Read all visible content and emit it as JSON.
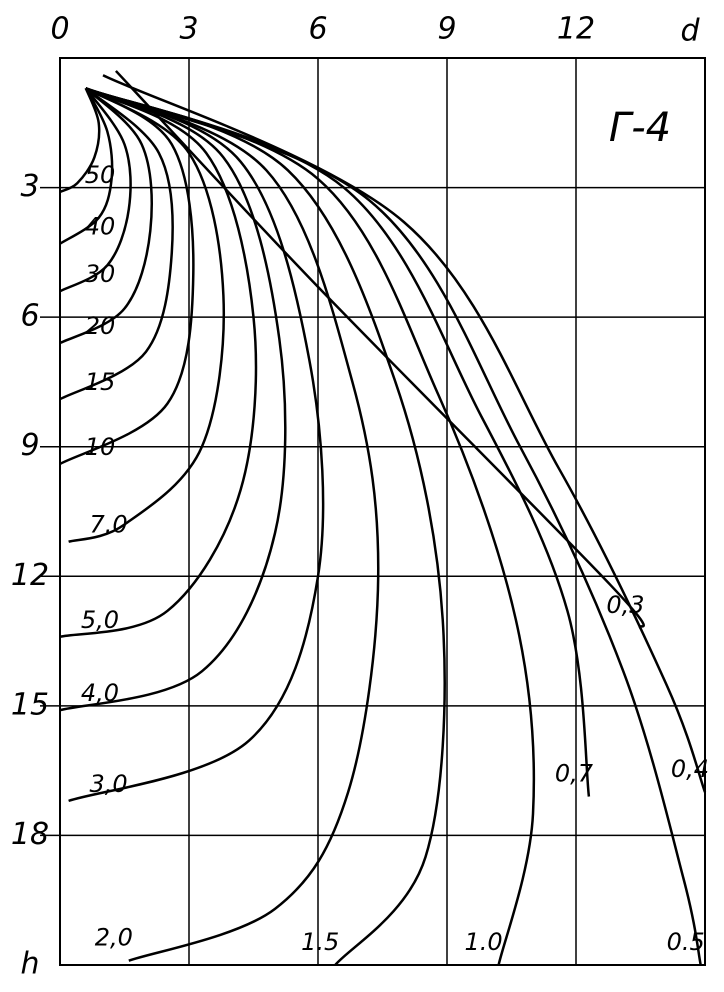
{
  "chart_data": {
    "type": "line",
    "title": "Г-4",
    "x_label": "d",
    "y_label": "h",
    "xlim": [
      0,
      15
    ],
    "ylim": [
      0,
      21
    ],
    "y_inverted": true,
    "xticks": [
      0,
      3,
      6,
      9,
      12
    ],
    "yticks": [
      3,
      6,
      9,
      12,
      15,
      18
    ],
    "grid": true,
    "series": [
      {
        "name": "50",
        "color": "#000000",
        "x": [
          0.6,
          0.9,
          0.8,
          0.4,
          0
        ],
        "values": [
          0.7,
          1.5,
          2.3,
          2.9,
          3.1
        ]
      },
      {
        "name": "40",
        "color": "#000000",
        "x": [
          0.6,
          1.1,
          1.2,
          0.9,
          0
        ],
        "values": [
          0.7,
          1.7,
          2.8,
          3.7,
          4.3
        ]
      },
      {
        "name": "30",
        "color": "#000000",
        "x": [
          0.6,
          1.5,
          1.6,
          1.1,
          0
        ],
        "values": [
          0.7,
          2.0,
          3.5,
          4.8,
          5.4
        ]
      },
      {
        "name": "20",
        "color": "#000000",
        "x": [
          0.6,
          1.9,
          2.1,
          1.5,
          0
        ],
        "values": [
          0.7,
          2.0,
          4.0,
          5.8,
          6.6
        ]
      },
      {
        "name": "15",
        "color": "#000000",
        "x": [
          0.6,
          2.3,
          2.6,
          2.0,
          0
        ],
        "values": [
          0.7,
          2.2,
          4.5,
          6.8,
          7.9
        ]
      },
      {
        "name": "10",
        "color": "#000000",
        "x": [
          0.6,
          2.6,
          3.1,
          2.5,
          0
        ],
        "values": [
          0.7,
          2.0,
          5.0,
          8.0,
          9.4
        ]
      },
      {
        "name": "7.0",
        "color": "#000000",
        "x": [
          0.6,
          3.0,
          3.8,
          3.3,
          1.5,
          0.2
        ],
        "values": [
          0.7,
          2.2,
          5.5,
          9.0,
          10.8,
          11.2
        ]
      },
      {
        "name": "5,0",
        "color": "#000000",
        "x": [
          0.6,
          3.4,
          4.5,
          4.2,
          2.5,
          0
        ],
        "values": [
          0.7,
          2.2,
          6.0,
          10.0,
          12.8,
          13.4
        ]
      },
      {
        "name": "4,0",
        "color": "#000000",
        "x": [
          0.6,
          3.8,
          5.1,
          5.0,
          3.3,
          0
        ],
        "values": [
          0.7,
          2.3,
          6.5,
          11.0,
          14.2,
          15.1
        ]
      },
      {
        "name": "3,0",
        "color": "#000000",
        "x": [
          0.6,
          4.2,
          5.8,
          6.0,
          4.4,
          0.2
        ],
        "values": [
          0.7,
          2.4,
          7.0,
          12.0,
          15.8,
          17.2
        ]
      },
      {
        "name": "2,0",
        "color": "#000000",
        "x": [
          0.6,
          4.8,
          6.8,
          7.4,
          6.7,
          5.0,
          1.6
        ],
        "values": [
          0.7,
          2.6,
          7.5,
          12.0,
          17.0,
          19.7,
          20.9
        ]
      },
      {
        "name": "1.5",
        "color": "#000000",
        "x": [
          0.6,
          5.3,
          7.8,
          8.9,
          8.5,
          6.4
        ],
        "values": [
          0.7,
          2.6,
          7.5,
          13.0,
          18.5,
          21.0
        ]
      },
      {
        "name": "1.0",
        "color": "#000000",
        "x": [
          0.6,
          6.0,
          8.8,
          10.6,
          11.0,
          10.2
        ],
        "values": [
          0.7,
          2.8,
          7.8,
          13.0,
          17.5,
          21.0
        ]
      },
      {
        "name": "0,7",
        "color": "#000000",
        "x": [
          0.6,
          6.6,
          9.8,
          11.8,
          12.3
        ],
        "values": [
          0.7,
          3.0,
          8.3,
          12.8,
          17.1
        ]
      },
      {
        "name": "0.5",
        "color": "#000000",
        "x": [
          0.6,
          7.2,
          10.7,
          13.1,
          14.5,
          14.9
        ],
        "values": [
          0.7,
          3.3,
          9.0,
          14.2,
          19.0,
          21.0
        ]
      },
      {
        "name": "0,4",
        "color": "#000000",
        "x": [
          1.0,
          8.0,
          11.6,
          14.1,
          15.0
        ],
        "values": [
          0.4,
          3.8,
          9.5,
          14.5,
          17.0
        ]
      },
      {
        "name": "0,3",
        "color": "#000000",
        "x": [
          1.3,
          6.0,
          12.8,
          13.5
        ],
        "values": [
          0.3,
          5.3,
          12.2,
          13.2
        ]
      }
    ]
  }
}
